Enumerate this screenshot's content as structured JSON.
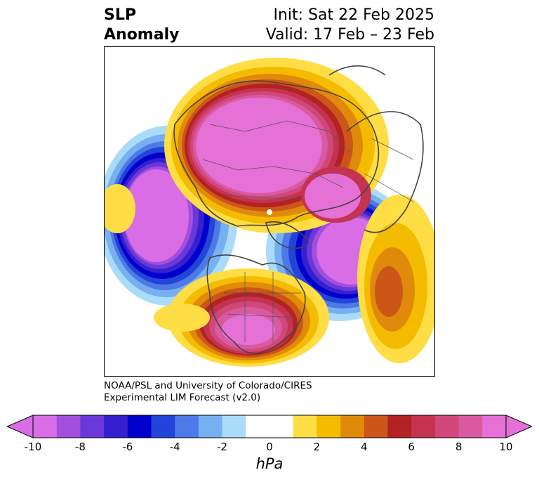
{
  "title": {
    "left_line1": "SLP",
    "left_line2": "Anomaly",
    "right_line1": "Init: Sat 22 Feb 2025",
    "right_line2": "Valid: 17 Feb – 23 Feb"
  },
  "credit": {
    "line1": "NOAA/PSL and University of Colorado/CIRES",
    "line2": "Experimental LIM Forecast (v2.0)"
  },
  "colorbar": {
    "unit": "hPa",
    "ticks": [
      "-10",
      "-8",
      "-6",
      "-4",
      "-2",
      "0",
      "2",
      "4",
      "6",
      "8",
      "10"
    ],
    "colors": [
      "#d86de6",
      "#a24fde",
      "#6a38d9",
      "#3520d0",
      "#0000cc",
      "#2244d8",
      "#4d7ae6",
      "#77b0f0",
      "#aadcfa",
      "#ffffff",
      "#ffffff",
      "#ffdd44",
      "#f5bb00",
      "#e08a0c",
      "#cc5518",
      "#b22222",
      "#c43350",
      "#d0487a",
      "#d95aa0",
      "#e570d6"
    ],
    "over_color": "#e570d6",
    "under_color": "#d86de6"
  },
  "map": {
    "projection": "north-polar-stereographic",
    "features": [
      "coastlines",
      "country-borders",
      "state-borders"
    ]
  }
}
